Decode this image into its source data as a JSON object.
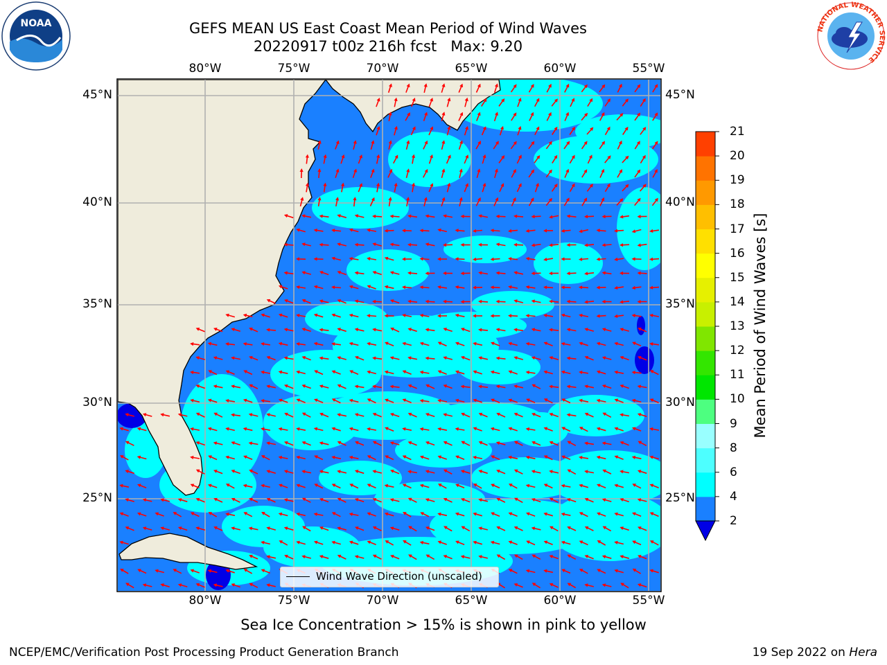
{
  "title": {
    "line1": "GEFS MEAN US East Coast Mean Period of Wind Waves",
    "line2": "20220917 t00z 216h fcst   Max: 9.20"
  },
  "map": {
    "lon_labels": [
      "80°W",
      "75°W",
      "70°W",
      "65°W",
      "60°W",
      "55°W"
    ],
    "lat_labels": [
      "45°N",
      "40°N",
      "35°N",
      "30°N",
      "25°N"
    ],
    "legend_label": "Wind Wave Direction (unscaled)",
    "arrow_color": "#ff0000",
    "land_color": "#efecdc",
    "ocean_colors": [
      "#1a80ff",
      "#00ffff",
      "#0000e6"
    ]
  },
  "colorbar": {
    "title": "Mean Period of Wind Waves [s]",
    "ticks": [
      "2",
      "4",
      "6",
      "8",
      "9",
      "10",
      "11",
      "12",
      "13",
      "14",
      "15",
      "16",
      "17",
      "18",
      "19",
      "20",
      "21"
    ],
    "colors": [
      "#1a80ff",
      "#00ffff",
      "#4dffff",
      "#99ffff",
      "#4dff80",
      "#00e600",
      "#33e600",
      "#80e600",
      "#c8f000",
      "#e6f000",
      "#ffff00",
      "#ffe000",
      "#ffbf00",
      "#ff9900",
      "#ff7300",
      "#ff4000",
      "#ff0000"
    ],
    "extend_color": "#0000e6"
  },
  "footer": {
    "note": "Sea Ice Concentration > 15% is shown in pink to yellow",
    "credit": "NCEP/EMC/Verification Post Processing Product Generation Branch",
    "date_prefix": "19 Sep 2022 on ",
    "machine": "Hera"
  },
  "logos": {
    "noaa_text": "NOAA",
    "noaa_ring": "NATIONAL OCEANIC AND ATMOSPHERIC ADMINISTRATION · U.S. DEPARTMENT OF COMMERCE",
    "nws_ring": "NATIONAL WEATHER SERVICE"
  }
}
